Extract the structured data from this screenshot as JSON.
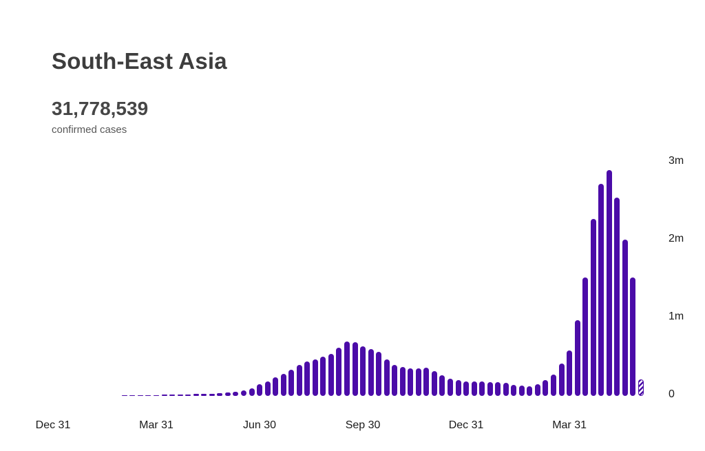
{
  "header": {
    "region": "South-East Asia",
    "total": "31,778,539",
    "subtitle": "confirmed cases"
  },
  "chart_data": {
    "type": "bar",
    "title": "South-East Asia",
    "series_name": "confirmed cases per week",
    "unit": "millions of cases per week",
    "bar_color": "#4b0ca8",
    "grid": false,
    "legend": false,
    "ylim": [
      0,
      3
    ],
    "y_ticks": [
      {
        "value": 0,
        "label": "0"
      },
      {
        "value": 1,
        "label": "1m"
      },
      {
        "value": 2,
        "label": "2m"
      },
      {
        "value": 3,
        "label": "3m"
      }
    ],
    "x_ticks": [
      {
        "week": 0,
        "label": "Dec 31"
      },
      {
        "week": 13,
        "label": "Mar 31"
      },
      {
        "week": 26,
        "label": "Jun 30"
      },
      {
        "week": 39,
        "label": "Sep 30"
      },
      {
        "week": 52,
        "label": "Dec 31"
      },
      {
        "week": 65,
        "label": "Mar 31"
      }
    ],
    "last_bar_hatched": true,
    "values_m": [
      0.001,
      0.001,
      0.002,
      0.002,
      0.003,
      0.003,
      0.004,
      0.005,
      0.005,
      0.008,
      0.009,
      0.01,
      0.011,
      0.013,
      0.015,
      0.016,
      0.018,
      0.02,
      0.024,
      0.027,
      0.03,
      0.035,
      0.044,
      0.053,
      0.068,
      0.1,
      0.15,
      0.19,
      0.24,
      0.28,
      0.34,
      0.4,
      0.44,
      0.47,
      0.5,
      0.54,
      0.62,
      0.7,
      0.69,
      0.64,
      0.6,
      0.565,
      0.47,
      0.4,
      0.375,
      0.35,
      0.35,
      0.365,
      0.32,
      0.265,
      0.22,
      0.2,
      0.19,
      0.19,
      0.185,
      0.18,
      0.175,
      0.165,
      0.14,
      0.133,
      0.127,
      0.15,
      0.2,
      0.27,
      0.42,
      0.585,
      0.97,
      1.52,
      2.27,
      2.73,
      2.9,
      2.55,
      2.01,
      1.52,
      0.21
    ]
  }
}
